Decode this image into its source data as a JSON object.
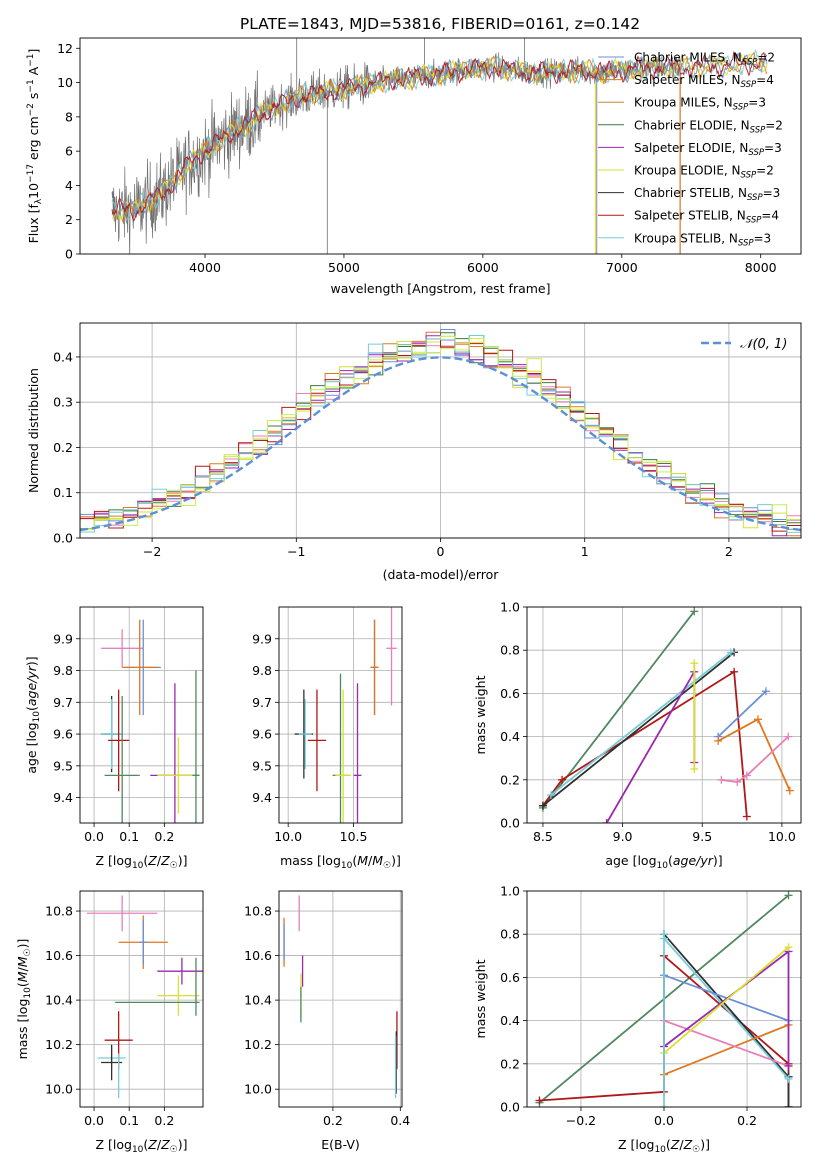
{
  "figure_title": "PLATE=1843, MJD=53816, FIBERID=0161, z=0.142",
  "colors": {
    "chabrier_miles": "#6a8fd8",
    "salpeter_miles": "#e07820",
    "kroupa_miles": "#c08a30",
    "chabrier_elodie": "#3a7a3a",
    "salpeter_elodie": "#9a28b0",
    "kroupa_elodie": "#d8e030",
    "chabrier_stelib": "#303030",
    "salpeter_stelib": "#b01818",
    "kroupa_stelib": "#78ccd8",
    "extra_pink": "#e880b8",
    "extra_green": "#508860",
    "extra_lime": "#c8f050",
    "gaussian": "#5b8fd6",
    "spectrum": "#707070"
  },
  "chart_data": [
    {
      "id": "spectrum",
      "type": "line",
      "xlabel": "wavelength [Angstrom, rest frame]",
      "ylabel": "Flux [f_λ10^-17 erg cm^-2 s^-1 A^-1]",
      "xlim": [
        3100,
        8290
      ],
      "ylim": [
        0,
        12.6
      ],
      "xticks": [
        4000,
        5000,
        6000,
        7000,
        8000
      ],
      "yticks": [
        0,
        2,
        4,
        6,
        8,
        10,
        12
      ],
      "legend_position": "right",
      "series": [
        {
          "name": "Chabrier MILES, N_SSP=2",
          "color_key": "chabrier_miles"
        },
        {
          "name": "Salpeter MILES, N_SSP=4",
          "color_key": "salpeter_miles"
        },
        {
          "name": "Kroupa MILES, N_SSP=3",
          "color_key": "kroupa_miles"
        },
        {
          "name": "Chabrier ELODIE, N_SSP=2",
          "color_key": "chabrier_elodie"
        },
        {
          "name": "Salpeter ELODIE, N_SSP=3",
          "color_key": "salpeter_elodie"
        },
        {
          "name": "Kroupa ELODIE, N_SSP=2",
          "color_key": "kroupa_elodie"
        },
        {
          "name": "Chabrier STELIB, N_SSP=3",
          "color_key": "chabrier_stelib"
        },
        {
          "name": "Salpeter STELIB, N_SSP=4",
          "color_key": "salpeter_stelib"
        },
        {
          "name": "Kroupa STELIB, N_SSP=3",
          "color_key": "kroupa_stelib"
        }
      ],
      "continuum": {
        "x": [
          3330,
          3500,
          3700,
          3900,
          4100,
          4300,
          4500,
          4700,
          4900,
          5100,
          5300,
          5500,
          5700,
          5900,
          6100,
          6300,
          6500,
          6700,
          6900,
          7100,
          7300,
          7500,
          7700,
          7900,
          8050
        ],
        "y": [
          2.5,
          2.6,
          3.6,
          5.4,
          6.6,
          7.6,
          8.6,
          9.2,
          9.5,
          9.8,
          10.1,
          10.3,
          10.5,
          10.8,
          10.9,
          10.6,
          10.6,
          10.7,
          10.6,
          10.8,
          10.9,
          10.9,
          11.0,
          11.1,
          11.2
        ]
      },
      "observed_range": [
        3330,
        7420
      ],
      "model_range": [
        3330,
        8050
      ]
    },
    {
      "id": "residual_histogram",
      "type": "bar",
      "xlabel": "(data-model)/error",
      "ylabel": "Normed distribution",
      "xlim": [
        -2.5,
        2.5
      ],
      "ylim": [
        0,
        0.475
      ],
      "xticks": [
        -2,
        -1,
        0,
        1,
        2
      ],
      "yticks": [
        0.0,
        0.1,
        0.2,
        0.3,
        0.4
      ],
      "legend_position": "upper right",
      "legend_label": "𝒩(0, 1)",
      "bin_width": 0.1
    },
    {
      "id": "age_vs_Z",
      "type": "scatter",
      "xlabel": "Z [log10(Z/Z☉)]",
      "ylabel": "age [log10(age/yr)]",
      "xlim": [
        -0.04,
        0.31
      ],
      "ylim": [
        9.32,
        10.0
      ],
      "xticks": [
        0.0,
        0.1,
        0.2
      ],
      "yticks": [
        9.4,
        9.5,
        9.6,
        9.7,
        9.8,
        9.9
      ],
      "points": [
        {
          "x": 0.08,
          "y": 9.87,
          "xerr": 0.06,
          "yerr": 0.06,
          "color_key": "extra_pink"
        },
        {
          "x": 0.14,
          "y": 9.81,
          "xerr": 0.05,
          "yerr": 0.15,
          "color_key": "chabrier_miles"
        },
        {
          "x": 0.13,
          "y": 9.81,
          "xerr": 0.05,
          "yerr": 0.15,
          "color_key": "salpeter_miles"
        },
        {
          "x": 0.05,
          "y": 9.6,
          "xerr": 0.03,
          "yerr": 0.12,
          "color_key": "chabrier_stelib"
        },
        {
          "x": 0.05,
          "y": 9.6,
          "xerr": 0.03,
          "yerr": 0.11,
          "color_key": "kroupa_stelib"
        },
        {
          "x": 0.07,
          "y": 9.58,
          "xerr": 0.03,
          "yerr": 0.16,
          "color_key": "salpeter_stelib"
        },
        {
          "x": 0.23,
          "y": 9.47,
          "xerr": 0.07,
          "yerr": 0.29,
          "color_key": "salpeter_elodie"
        },
        {
          "x": 0.24,
          "y": 9.47,
          "xerr": 0.06,
          "yerr": 0.12,
          "color_key": "kroupa_elodie"
        },
        {
          "x": 0.29,
          "y": 9.47,
          "xerr": 0.01,
          "yerr": 0.33,
          "color_key": "extra_green"
        },
        {
          "x": 0.08,
          "y": 9.47,
          "xerr": 0.05,
          "yerr": 0.25,
          "color_key": "extra_green"
        }
      ]
    },
    {
      "id": "age_vs_mass",
      "type": "scatter",
      "xlabel": "mass [log10(M/M☉)]",
      "ylabel": "",
      "xlim": [
        9.93,
        10.87
      ],
      "ylim": [
        9.32,
        10.0
      ],
      "xticks": [
        10.0,
        10.5
      ],
      "yticks": [
        9.4,
        9.5,
        9.6,
        9.7,
        9.8,
        9.9
      ],
      "points": [
        {
          "x": 10.79,
          "y": 9.87,
          "xerr": 0.04,
          "yerr": 0.18,
          "color_key": "extra_pink"
        },
        {
          "x": 10.66,
          "y": 9.81,
          "xerr": 0.03,
          "yerr": 0.15,
          "color_key": "chabrier_miles"
        },
        {
          "x": 10.66,
          "y": 9.81,
          "xerr": 0.03,
          "yerr": 0.15,
          "color_key": "salpeter_miles"
        },
        {
          "x": 10.12,
          "y": 9.6,
          "xerr": 0.07,
          "yerr": 0.14,
          "color_key": "chabrier_stelib"
        },
        {
          "x": 10.13,
          "y": 9.6,
          "xerr": 0.05,
          "yerr": 0.11,
          "color_key": "kroupa_stelib"
        },
        {
          "x": 10.22,
          "y": 9.58,
          "xerr": 0.07,
          "yerr": 0.16,
          "color_key": "salpeter_stelib"
        },
        {
          "x": 10.4,
          "y": 9.47,
          "xerr": 0.06,
          "yerr": 0.32,
          "color_key": "extra_green"
        },
        {
          "x": 10.42,
          "y": 9.47,
          "xerr": 0.06,
          "yerr": 0.27,
          "color_key": "kroupa_elodie"
        },
        {
          "x": 10.53,
          "y": 9.47,
          "xerr": 0.03,
          "yerr": 0.29,
          "color_key": "salpeter_elodie"
        }
      ]
    },
    {
      "id": "mass_weight_vs_age",
      "type": "line",
      "xlabel": "age [log10(age/yr)]",
      "ylabel": "mass weight",
      "xlim": [
        8.4,
        10.12
      ],
      "ylim": [
        0,
        1.0
      ],
      "xticks": [
        8.5,
        9.0,
        9.5,
        10.0
      ],
      "yticks": [
        0.0,
        0.2,
        0.4,
        0.6,
        0.8,
        1.0
      ],
      "series": [
        {
          "color_key": "extra_green",
          "x": [
            8.5,
            9.45
          ],
          "y": [
            0.07,
            0.98
          ]
        },
        {
          "color_key": "salpeter_stelib",
          "x": [
            8.5,
            8.62,
            9.7,
            9.78
          ],
          "y": [
            0.08,
            0.2,
            0.7,
            0.03
          ]
        },
        {
          "color_key": "chabrier_stelib",
          "x": [
            8.5,
            9.7
          ],
          "y": [
            0.08,
            0.79
          ]
        },
        {
          "color_key": "kroupa_stelib",
          "x": [
            8.55,
            9.68
          ],
          "y": [
            0.13,
            0.79
          ]
        },
        {
          "color_key": "salpeter_elodie",
          "x": [
            8.9,
            9.45,
            9.45
          ],
          "y": [
            0.0,
            0.7,
            0.28
          ]
        },
        {
          "color_key": "kroupa_elodie",
          "x": [
            9.45,
            9.45
          ],
          "y": [
            0.25,
            0.74
          ]
        },
        {
          "color_key": "chabrier_miles",
          "x": [
            9.6,
            9.9
          ],
          "y": [
            0.4,
            0.61
          ]
        },
        {
          "color_key": "salpeter_miles",
          "x": [
            9.6,
            9.85,
            10.05
          ],
          "y": [
            0.38,
            0.48,
            0.15
          ]
        },
        {
          "color_key": "extra_pink",
          "x": [
            9.62,
            9.72,
            9.78,
            10.04
          ],
          "y": [
            0.2,
            0.19,
            0.22,
            0.4
          ]
        }
      ]
    },
    {
      "id": "mass_vs_Z",
      "type": "scatter",
      "xlabel": "Z [log10(Z/Z☉)]",
      "ylabel": "mass [log10(M/M☉)]",
      "xlim": [
        -0.04,
        0.31
      ],
      "ylim": [
        9.92,
        10.89
      ],
      "xticks": [
        0.0,
        0.1,
        0.2
      ],
      "yticks": [
        10.0,
        10.2,
        10.4,
        10.6,
        10.8
      ],
      "points": [
        {
          "x": 0.08,
          "y": 10.79,
          "xerr": 0.1,
          "yerr": 0.08,
          "color_key": "extra_pink"
        },
        {
          "x": 0.14,
          "y": 10.66,
          "xerr": 0.07,
          "yerr": 0.12,
          "color_key": "salpeter_miles"
        },
        {
          "x": 0.14,
          "y": 10.66,
          "xerr": 0.01,
          "yerr": 0.1,
          "color_key": "chabrier_miles"
        },
        {
          "x": 0.25,
          "y": 10.53,
          "xerr": 0.07,
          "yerr": 0.06,
          "color_key": "salpeter_elodie"
        },
        {
          "x": 0.24,
          "y": 10.42,
          "xerr": 0.06,
          "yerr": 0.09,
          "color_key": "kroupa_elodie"
        },
        {
          "x": 0.18,
          "y": 10.39,
          "xerr": 0.12,
          "yerr": 0.0,
          "color_key": "extra_green"
        },
        {
          "x": 0.29,
          "y": 10.46,
          "xerr": 0.0,
          "yerr": 0.13,
          "color_key": "extra_green"
        },
        {
          "x": 0.07,
          "y": 10.22,
          "xerr": 0.04,
          "yerr": 0.13,
          "color_key": "salpeter_stelib"
        },
        {
          "x": 0.05,
          "y": 10.14,
          "xerr": 0.04,
          "yerr": 0.05,
          "color_key": "kroupa_stelib"
        },
        {
          "x": 0.05,
          "y": 10.12,
          "xerr": 0.03,
          "yerr": 0.08,
          "color_key": "chabrier_stelib"
        },
        {
          "x": 0.07,
          "y": 10.06,
          "xerr": 0.0,
          "yerr": 0.1,
          "color_key": "kroupa_stelib"
        }
      ]
    },
    {
      "id": "mass_vs_ebv",
      "type": "scatter",
      "xlabel": "E(B-V)",
      "ylabel": "",
      "xlim": [
        0.04,
        0.405
      ],
      "ylim": [
        9.92,
        10.89
      ],
      "xticks": [
        0.2,
        0.4
      ],
      "yticks": [
        10.0,
        10.2,
        10.4,
        10.6,
        10.8
      ],
      "points": [
        {
          "x": 0.1,
          "y": 10.79,
          "xerr": 0.0,
          "yerr": 0.08,
          "color_key": "extra_pink"
        },
        {
          "x": 0.055,
          "y": 10.66,
          "xerr": 0.0,
          "yerr": 0.11,
          "color_key": "salpeter_miles"
        },
        {
          "x": 0.055,
          "y": 10.66,
          "xerr": 0.0,
          "yerr": 0.08,
          "color_key": "chabrier_miles"
        },
        {
          "x": 0.11,
          "y": 10.53,
          "xerr": 0.0,
          "yerr": 0.07,
          "color_key": "salpeter_elodie"
        },
        {
          "x": 0.105,
          "y": 10.42,
          "xerr": 0.0,
          "yerr": 0.1,
          "color_key": "kroupa_elodie"
        },
        {
          "x": 0.105,
          "y": 10.38,
          "xerr": 0.0,
          "yerr": 0.08,
          "color_key": "extra_green"
        },
        {
          "x": 0.39,
          "y": 10.22,
          "xerr": 0.0,
          "yerr": 0.13,
          "color_key": "salpeter_stelib"
        },
        {
          "x": 0.388,
          "y": 10.12,
          "xerr": 0.0,
          "yerr": 0.14,
          "color_key": "chabrier_stelib"
        },
        {
          "x": 0.386,
          "y": 10.1,
          "xerr": 0.0,
          "yerr": 0.14,
          "color_key": "kroupa_stelib"
        }
      ]
    },
    {
      "id": "mass_weight_vs_Z",
      "type": "line",
      "xlabel": "Z [log10(Z/Z☉)]",
      "ylabel": "mass weight",
      "xlim": [
        -0.33,
        0.33
      ],
      "ylim": [
        0,
        1.0
      ],
      "xticks": [
        -0.2,
        0.0,
        0.2
      ],
      "yticks": [
        0.0,
        0.2,
        0.4,
        0.6,
        0.8,
        1.0
      ],
      "series": [
        {
          "color_key": "extra_green",
          "x": [
            -0.3,
            0.3
          ],
          "y": [
            0.02,
            0.98
          ]
        },
        {
          "color_key": "salpeter_stelib",
          "x": [
            -0.3,
            0.0,
            0.0,
            0.3,
            0.3
          ],
          "y": [
            0.03,
            0.07,
            0.7,
            0.2,
            0.0
          ]
        },
        {
          "color_key": "chabrier_stelib",
          "x": [
            0.0,
            0.3,
            0.3
          ],
          "y": [
            0.8,
            0.14,
            0.0
          ]
        },
        {
          "color_key": "kroupa_stelib",
          "x": [
            0.0,
            0.3
          ],
          "y": [
            0.78,
            0.13
          ]
        },
        {
          "color_key": "chabrier_miles",
          "x": [
            0.0,
            0.3
          ],
          "y": [
            0.61,
            0.4
          ]
        },
        {
          "color_key": "salpeter_miles",
          "x": [
            0.0,
            0.3
          ],
          "y": [
            0.15,
            0.38
          ]
        },
        {
          "color_key": "extra_pink",
          "x": [
            0.0,
            0.3
          ],
          "y": [
            0.4,
            0.19
          ]
        },
        {
          "color_key": "salpeter_elodie",
          "x": [
            0.0,
            0.3,
            0.3
          ],
          "y": [
            0.28,
            0.72,
            0.19
          ]
        },
        {
          "color_key": "kroupa_elodie",
          "x": [
            0.0,
            0.3
          ],
          "y": [
            0.25,
            0.74
          ]
        },
        {
          "color_key": "kroupa_stelib",
          "x": [
            0.0,
            0.0
          ],
          "y": [
            0.0,
            0.8
          ]
        }
      ]
    }
  ]
}
